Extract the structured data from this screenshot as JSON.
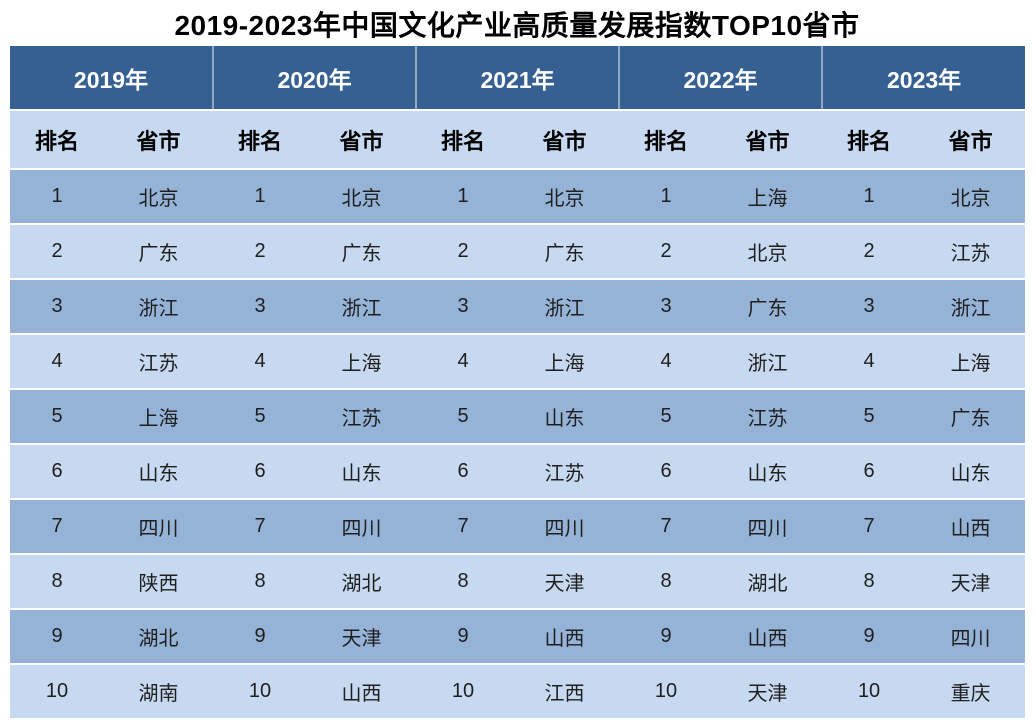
{
  "title": "2019-2023年中国文化产业高质量发展指数TOP10省市",
  "colors": {
    "year_header_bg": "#366092",
    "year_header_text": "#FFFFFF",
    "subheader_bg": "#C6D9F0",
    "row_odd_bg": "#95B3D7",
    "row_even_bg": "#C6D9F0",
    "body_text": "#1F1F1F",
    "page_bg": "#FFFFFF"
  },
  "table": {
    "year_headers": [
      "2019年",
      "2020年",
      "2021年",
      "2022年",
      "2023年"
    ],
    "sub_headers": {
      "rank": "排名",
      "province": "省市"
    },
    "rows": [
      {
        "rank": "1",
        "provinces": [
          "北京",
          "北京",
          "北京",
          "上海",
          "北京"
        ]
      },
      {
        "rank": "2",
        "provinces": [
          "广东",
          "广东",
          "广东",
          "北京",
          "江苏"
        ]
      },
      {
        "rank": "3",
        "provinces": [
          "浙江",
          "浙江",
          "浙江",
          "广东",
          "浙江"
        ]
      },
      {
        "rank": "4",
        "provinces": [
          "江苏",
          "上海",
          "上海",
          "浙江",
          "上海"
        ]
      },
      {
        "rank": "5",
        "provinces": [
          "上海",
          "江苏",
          "山东",
          "江苏",
          "广东"
        ]
      },
      {
        "rank": "6",
        "provinces": [
          "山东",
          "山东",
          "江苏",
          "山东",
          "山东"
        ]
      },
      {
        "rank": "7",
        "provinces": [
          "四川",
          "四川",
          "四川",
          "四川",
          "山西"
        ]
      },
      {
        "rank": "8",
        "provinces": [
          "陕西",
          "湖北",
          "天津",
          "湖北",
          "天津"
        ]
      },
      {
        "rank": "9",
        "provinces": [
          "湖北",
          "天津",
          "山西",
          "山西",
          "四川"
        ]
      },
      {
        "rank": "10",
        "provinces": [
          "湖南",
          "山西",
          "江西",
          "天津",
          "重庆"
        ]
      }
    ]
  }
}
